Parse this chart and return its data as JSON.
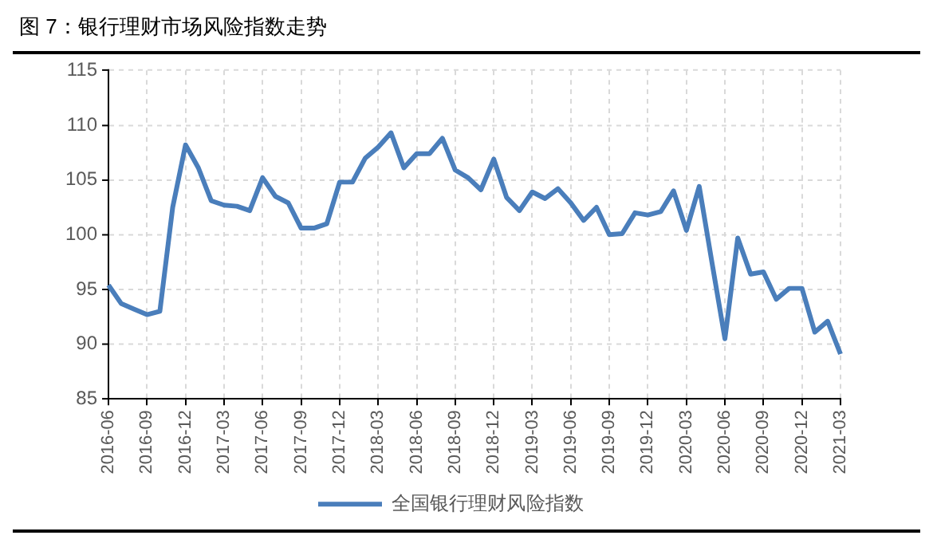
{
  "chart_data": {
    "type": "line",
    "title": "图 7：银行理财市场风险指数走势",
    "categories": [
      "2016-06",
      null,
      null,
      "2016-09",
      null,
      null,
      "2016-12",
      null,
      null,
      "2017-03",
      null,
      null,
      "2017-06",
      null,
      null,
      "2017-09",
      null,
      null,
      "2017-12",
      null,
      null,
      "2018-03",
      null,
      null,
      "2018-06",
      null,
      null,
      "2018-09",
      null,
      null,
      "2018-12",
      null,
      null,
      "2019-03",
      null,
      null,
      "2019-06",
      null,
      null,
      "2019-09",
      null,
      null,
      "2019-12",
      null,
      null,
      "2020-03",
      null,
      null,
      "2020-06",
      null,
      null,
      "2020-09",
      null,
      null,
      "2020-12",
      null,
      null,
      "2021-03"
    ],
    "series": [
      {
        "name": "全国银行理财风险指数",
        "color": "#4a7ebb",
        "values": [
          95.4,
          93.7,
          93.2,
          92.7,
          93.0,
          102.5,
          108.2,
          106.1,
          103.1,
          102.7,
          102.6,
          102.2,
          105.2,
          103.5,
          102.9,
          100.6,
          100.6,
          101.0,
          104.8,
          104.8,
          107.0,
          108.0,
          109.3,
          106.1,
          107.4,
          107.4,
          108.8,
          105.9,
          105.2,
          104.1,
          106.9,
          103.4,
          102.2,
          103.9,
          103.3,
          104.2,
          102.9,
          101.3,
          102.5,
          100.0,
          100.1,
          102.0,
          101.8,
          102.1,
          104.0,
          100.4,
          104.4,
          97.4,
          90.5,
          99.7,
          96.4,
          96.6,
          94.1,
          95.1,
          95.1,
          91.1,
          92.1,
          89.1
        ]
      }
    ],
    "ylim": [
      85,
      115
    ],
    "yticks": [
      85,
      90,
      95,
      100,
      105,
      110,
      115
    ],
    "grid": true,
    "legend": "bottom",
    "marker": "none",
    "line_style": "solid"
  }
}
